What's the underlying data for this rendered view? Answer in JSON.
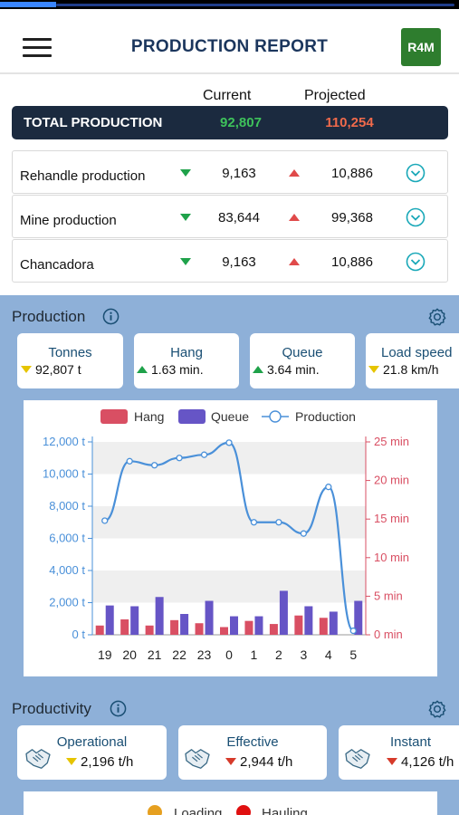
{
  "header": {
    "title": "PRODUCTION REPORT",
    "logo_text": "R4M"
  },
  "summary": {
    "current_label": "Current",
    "projected_label": "Projected",
    "total": {
      "label": "TOTAL PRODUCTION",
      "current": "92,807",
      "projected": "110,254"
    },
    "rows": [
      {
        "name": "Rehandle production",
        "current": "9,163",
        "projected": "10,886"
      },
      {
        "name": "Mine production",
        "current": "83,644",
        "projected": "99,368"
      },
      {
        "name": "Chancadora",
        "current": "9,163",
        "projected": "10,886"
      }
    ]
  },
  "production": {
    "title": "Production",
    "cards": [
      {
        "title": "Tonnes",
        "value": "92,807 t",
        "trend": "down-yellow"
      },
      {
        "title": "Hang",
        "value": "1.63 min.",
        "trend": "up-green"
      },
      {
        "title": "Queue",
        "value": "3.64 min.",
        "trend": "up-green"
      },
      {
        "title": "Load speed",
        "value": "21.8 km/h",
        "trend": "down-yellow"
      }
    ]
  },
  "chart_data": {
    "type": "bar",
    "categories": [
      "19",
      "20",
      "21",
      "22",
      "23",
      "0",
      "1",
      "2",
      "3",
      "4",
      "5"
    ],
    "legend": [
      "Hang",
      "Queue",
      "Production"
    ],
    "series": [
      {
        "name": "Hang",
        "axis": "right",
        "type": "bar",
        "color": "#d94f63",
        "values": [
          1.2,
          2.0,
          1.2,
          1.9,
          1.5,
          1.0,
          1.8,
          1.4,
          2.5,
          2.2,
          0
        ]
      },
      {
        "name": "Queue",
        "axis": "right",
        "type": "bar",
        "color": "#6655c6",
        "values": [
          3.8,
          3.7,
          4.9,
          2.7,
          4.4,
          2.4,
          2.4,
          5.7,
          3.7,
          3.0,
          4.4
        ]
      },
      {
        "name": "Production",
        "axis": "left",
        "type": "line",
        "color": "#4a90d9",
        "values": [
          7100,
          10800,
          10550,
          11000,
          11200,
          11950,
          7000,
          7000,
          6300,
          9200,
          250
        ]
      }
    ],
    "yleft": {
      "ticks": [
        "0 t",
        "2,000 t",
        "4,000 t",
        "6,000 t",
        "8,000 t",
        "10,000 t",
        "12,000 t"
      ],
      "range": [
        0,
        12000
      ]
    },
    "yright": {
      "ticks": [
        "0 min",
        "5 min",
        "10 min",
        "15 min",
        "20 min",
        "25 min"
      ],
      "range": [
        0,
        25
      ]
    },
    "colors": {
      "left_axis": "#4a90d9",
      "right_axis": "#d94f63"
    },
    "grid": "alternating-bands"
  },
  "productivity": {
    "title": "Productivity",
    "cards": [
      {
        "title": "Operational",
        "value": "2,196 t/h",
        "trend": "down-yellow"
      },
      {
        "title": "Effective",
        "value": "2,944 t/h",
        "trend": "down-red"
      },
      {
        "title": "Instant",
        "value": "4,126 t/h",
        "trend": "down-red"
      }
    ],
    "legend": [
      {
        "label": "Loading",
        "color": "#e6a020"
      },
      {
        "label": "Hauling",
        "color": "#e01010"
      }
    ]
  }
}
